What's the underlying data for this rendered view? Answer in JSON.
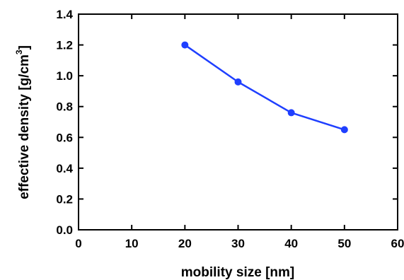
{
  "chart_data": {
    "type": "line",
    "title": "",
    "xlabel": "mobility size [nm]",
    "ylabel_main": "effective density [g/cm",
    "ylabel_sup": "3",
    "ylabel_close": "]",
    "xlim": [
      0,
      60
    ],
    "ylim": [
      0.0,
      1.4
    ],
    "x_ticks": [
      0,
      10,
      20,
      30,
      40,
      50,
      60
    ],
    "x_tick_labels": [
      "0",
      "10",
      "20",
      "30",
      "40",
      "50",
      "60"
    ],
    "y_ticks": [
      0.0,
      0.2,
      0.4,
      0.6,
      0.8,
      1.0,
      1.2,
      1.4
    ],
    "y_tick_labels": [
      "0.0",
      "0.2",
      "0.4",
      "0.6",
      "0.8",
      "1.0",
      "1.2",
      "1.4"
    ],
    "grid": false,
    "legend": "none",
    "series": [
      {
        "color": "#1f3fff",
        "x": [
          20,
          30,
          40,
          50
        ],
        "y": [
          1.2,
          0.96,
          0.76,
          0.65
        ]
      }
    ]
  }
}
